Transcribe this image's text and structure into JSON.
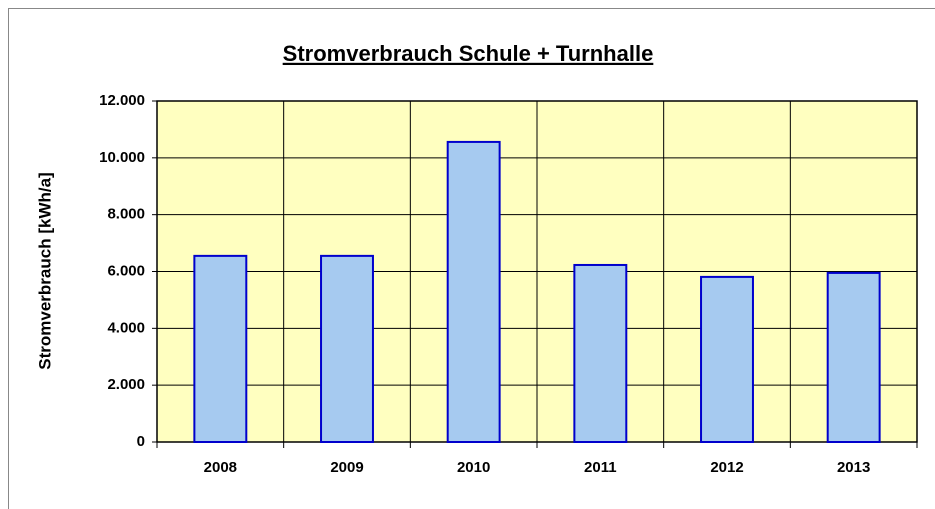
{
  "chart_data": {
    "type": "bar",
    "title": "Stromverbrauch Schule + Turnhalle",
    "y_label": "Stromverbrauch  [kWh/a]",
    "categories": [
      "2008",
      "2009",
      "2010",
      "2011",
      "2012",
      "2013"
    ],
    "values": [
      6550,
      6550,
      10560,
      6230,
      5810,
      5950
    ],
    "color": "#a6caf0",
    "ylim": [
      0,
      12000
    ],
    "yticks": [
      0,
      {
        "value": 2000,
        "label": "2.000"
      },
      {
        "value": 4000,
        "label": "4.000"
      },
      {
        "value": 6000,
        "label": "6.000"
      },
      {
        "value": 8000,
        "label": "8.000"
      },
      {
        "value": 10000,
        "label": "10.000"
      },
      {
        "value": 12000,
        "label": "12.000"
      }
    ],
    "grid": true
  }
}
